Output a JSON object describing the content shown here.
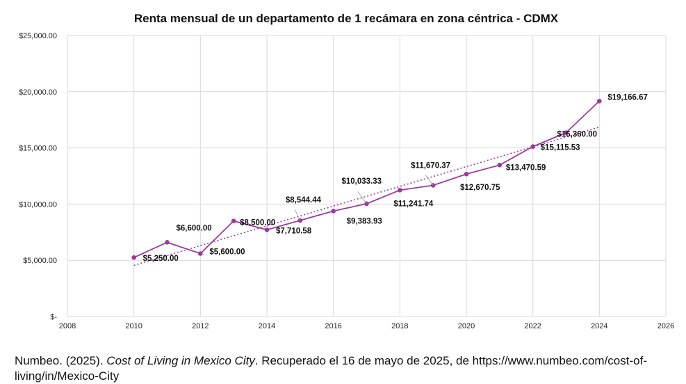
{
  "chart_data": {
    "type": "line",
    "title": "Renta mensual de un departamento de 1 recámara  en zona céntrica - CDMX",
    "xlabel": "",
    "ylabel": "",
    "xlim": [
      2008,
      2026
    ],
    "ylim": [
      0,
      25000
    ],
    "x_ticks": [
      2008,
      2010,
      2012,
      2014,
      2016,
      2018,
      2020,
      2022,
      2024,
      2026
    ],
    "y_ticks": [
      0,
      5000,
      10000,
      15000,
      20000,
      25000
    ],
    "y_tick_labels": [
      "$-",
      "$5,000.00",
      "$10,000.00",
      "$15,000.00",
      "$20,000.00",
      "$25,000.00"
    ],
    "grid": true,
    "series": [
      {
        "name": "Renta mensual",
        "color": "#9b3a9e",
        "x": [
          2010,
          2011,
          2012,
          2013,
          2014,
          2015,
          2016,
          2017,
          2018,
          2019,
          2020,
          2021,
          2022,
          2023,
          2024
        ],
        "values": [
          5250.0,
          6600.0,
          5600.0,
          8500.0,
          7710.58,
          8544.44,
          9383.93,
          10033.33,
          11241.74,
          11670.37,
          12670.75,
          13470.59,
          15115.53,
          16360.0,
          19166.67
        ],
        "labels": [
          "$5,250.00",
          "$6,600.00",
          "$5,600.00",
          "$8,500.00",
          "$7,710.58",
          "$8,544.44",
          "$9,383.93",
          "$10,033.33",
          "$11,241.74",
          "$11,670.37",
          "$12,670.75",
          "$13,470.59",
          "$15,115.53",
          "$16,360.00",
          "$19,166.67"
        ]
      }
    ],
    "trendline": {
      "type": "linear",
      "style": "dotted",
      "color": "#9b3a9e",
      "x": [
        2010,
        2024
      ],
      "values": [
        4550,
        16850
      ]
    }
  },
  "citation": {
    "prefix": "Numbeo. (2025). ",
    "title": "Cost of Living in Mexico City",
    "suffix": ". Recuperado el 16 de mayo de 2025, de https://www.numbeo.com/cost-of-living/in/Mexico-City"
  }
}
